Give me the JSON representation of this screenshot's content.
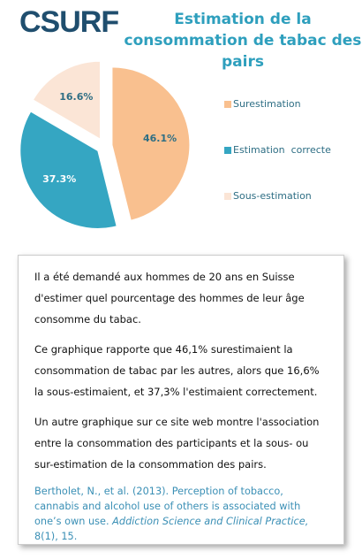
{
  "logo": "CSURF",
  "chart_data": {
    "type": "pie",
    "title": "Estimation de  la consommation de tabac des pairs",
    "categories": [
      "Surestimation",
      "Estimation  correcte",
      "Sous-estimation"
    ],
    "values": [
      46.1,
      37.3,
      16.6
    ],
    "value_labels": [
      "46.1%",
      "37.3%",
      "16.6%"
    ],
    "colors": [
      "#f9c08f",
      "#35a6c2",
      "#fbe5d6"
    ],
    "legend": "right"
  },
  "text_box": {
    "paragraphs": [
      "Il a été demandé aux hommes de 20 ans en Suisse d'estimer quel pourcentage des hommes  de leur âge consomme du tabac.",
      "Ce graphique rapporte  que 46,1% surestimaient la consommation de tabac par les autres, alors que 16,6% la sous-estimaient, et 37,3% l'estimaient correctement.",
      "Un autre graphique sur ce site web montre l'association entre la consommation  des participants et la sous- ou sur-estimation de la consommation  des pairs."
    ],
    "citation": {
      "authors": "Bertholet, N., et al. (2013). Perception of tobacco, cannabis and alcohol use of others is associated with one’s own use.",
      "journal": "Addiction Science  and Clinical Practice,",
      "issue": " 8(1), 15."
    }
  }
}
